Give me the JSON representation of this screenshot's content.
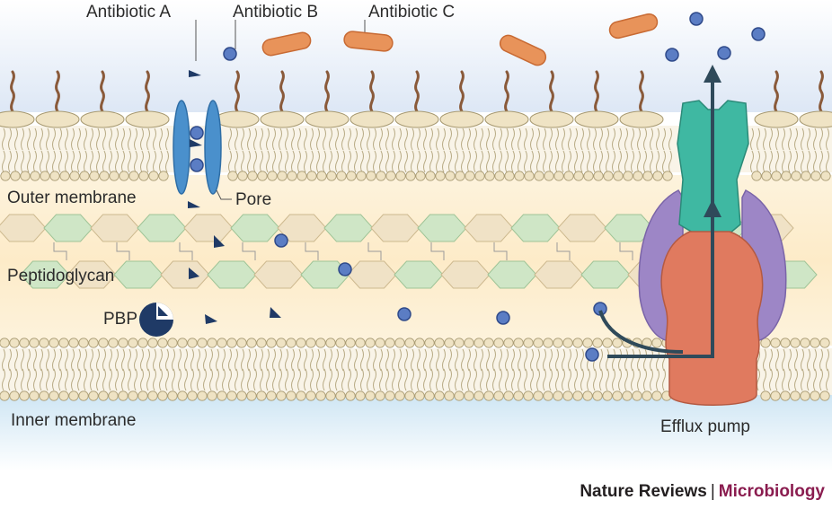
{
  "labels": {
    "antibiotic_a": "Antibiotic A",
    "antibiotic_b": "Antibiotic B",
    "antibiotic_c": "Antibiotic C",
    "outer_membrane": "Outer membrane",
    "pore": "Pore",
    "peptidoglycan": "Peptidoglycan",
    "pbp": "PBP",
    "inner_membrane": "Inner membrane",
    "efflux_pump": "Efflux pump"
  },
  "credit": {
    "journal": "Nature Reviews",
    "separator": "|",
    "subject": "Microbiology"
  },
  "colors": {
    "background_top": "#e4ebf6",
    "periplasm": "#fdf0d6",
    "lipid_head": "#efe3c4",
    "lipid_outline": "#a89a72",
    "lps_chain": "#8a5a3a",
    "porin": "#4a90cc",
    "antibiotic_a": "#1f3a66",
    "antibiotic_b": "#3f5fa8",
    "antibiotic_c": "#e8935a",
    "peptidoglycan_green": "#cfe6c6",
    "peptidoglycan_tan": "#f0e2c6",
    "pbp": "#1f3a66",
    "pump_outer": "#3fb8a2",
    "pump_adaptor": "#9d86c6",
    "pump_inner": "#e07a5f",
    "arrow": "#2f4a5a",
    "inner_membrane_bg": "#dcecf6"
  },
  "icons": {
    "porin": "porin-channel-icon",
    "antibiotic_a": "triangle-molecule-icon",
    "antibiotic_b": "sphere-molecule-icon",
    "antibiotic_c": "capsule-molecule-icon",
    "pbp": "pacman-protein-icon",
    "efflux_pump": "efflux-pump-icon"
  }
}
